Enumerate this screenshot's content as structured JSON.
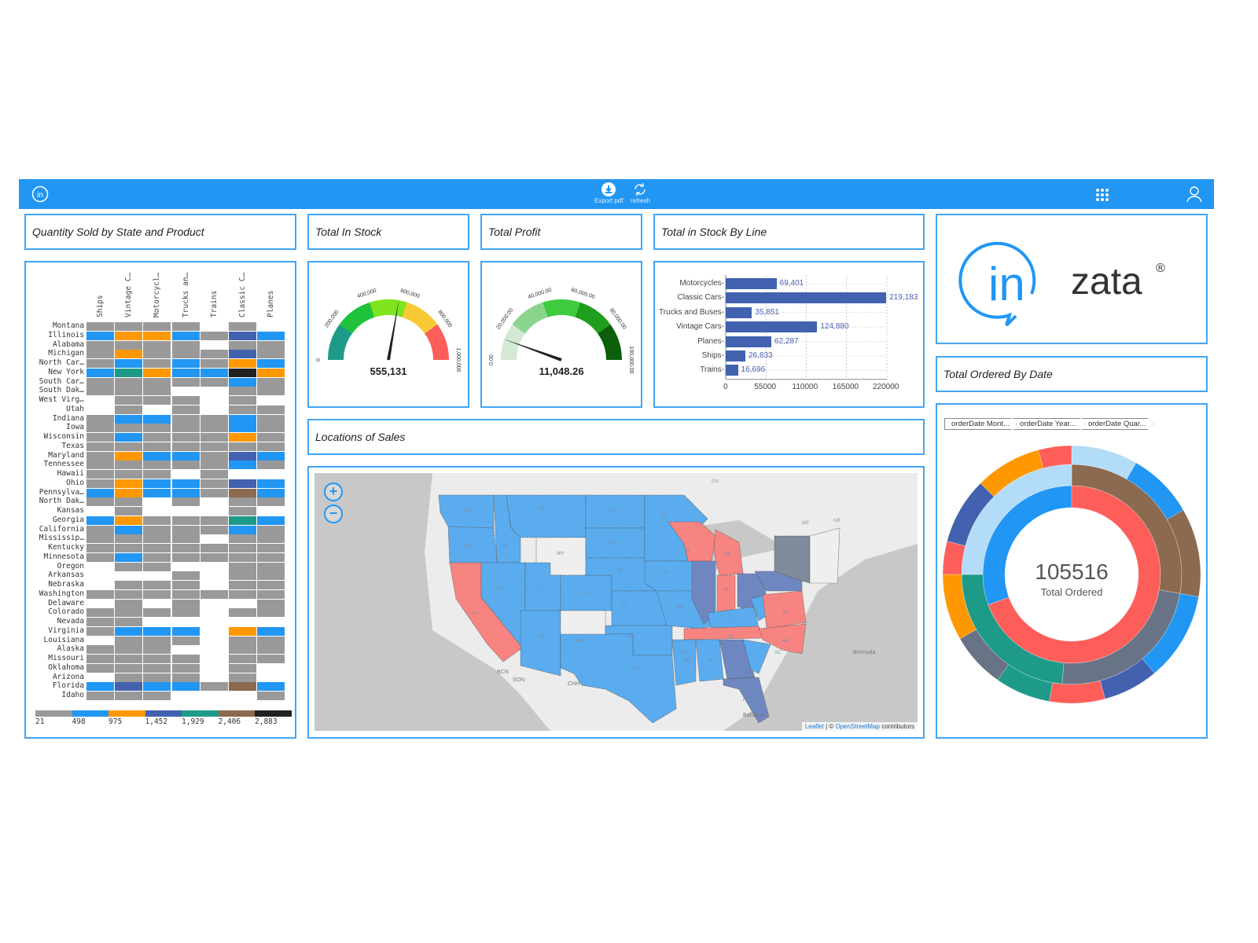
{
  "topbar": {
    "export_label": "Export pdf",
    "refresh_label": "refresh",
    "bg_color": "#2196f3"
  },
  "panels": {
    "heatmap_title": "Quantity Sold by State and Product",
    "stock_title": "Total In Stock",
    "profit_title": "Total Profit",
    "stock_by_line_title": "Total in Stock By Line",
    "locations_title": "Locations of Sales",
    "ordered_by_date_title": "Total Ordered By Date"
  },
  "logo": {
    "text_in": "in",
    "text_zata": "zata",
    "registered": "®"
  },
  "chart_data": [
    {
      "type": "heatmap",
      "title": "Quantity Sold by State and Product",
      "columns": [
        "Ships",
        "Vintage C…",
        "Motorcycl…",
        "Trucks an…",
        "Trains",
        "Classic C…",
        "Planes"
      ],
      "rows": [
        "Montana",
        "Illinois",
        "Alabama",
        "Michigan",
        "North Car…",
        "New York",
        "South Car…",
        "South Dak…",
        "West Virg…",
        "Utah",
        "Indiana",
        "Iowa",
        "Wisconsin",
        "Texas",
        "Maryland",
        "Tennessee",
        "Hawaii",
        "Ohio",
        "Pennsylva…",
        "North Dak…",
        "Kansas",
        "Georgia",
        "California",
        "Mississip…",
        "Kentucky",
        "Minnesota",
        "Oregon",
        "Arkansas",
        "Nebraska",
        "Washington",
        "Delaware",
        "Colorado",
        "Nevada",
        "Virginia",
        "Louisiana",
        "Alaska",
        "Missouri",
        "Oklahoma",
        "Arizona",
        "Florida",
        "Idaho"
      ],
      "cells": [
        [
          0,
          0,
          0,
          0,
          null,
          0,
          null
        ],
        [
          1,
          2,
          2,
          1,
          0,
          3,
          1
        ],
        [
          0,
          0,
          0,
          0,
          null,
          0,
          0
        ],
        [
          0,
          2,
          0,
          0,
          0,
          3,
          0
        ],
        [
          0,
          1,
          0,
          1,
          0,
          2,
          1
        ],
        [
          1,
          4,
          2,
          1,
          1,
          6,
          2
        ],
        [
          0,
          0,
          0,
          0,
          0,
          1,
          0
        ],
        [
          0,
          0,
          0,
          null,
          null,
          0,
          0
        ],
        [
          null,
          0,
          0,
          0,
          null,
          0,
          null
        ],
        [
          null,
          0,
          null,
          0,
          null,
          0,
          0
        ],
        [
          0,
          1,
          1,
          0,
          0,
          1,
          0
        ],
        [
          0,
          0,
          0,
          0,
          0,
          1,
          0
        ],
        [
          0,
          1,
          0,
          0,
          0,
          2,
          0
        ],
        [
          0,
          0,
          0,
          0,
          0,
          0,
          0
        ],
        [
          0,
          2,
          1,
          1,
          0,
          3,
          1
        ],
        [
          0,
          0,
          0,
          0,
          0,
          1,
          0
        ],
        [
          0,
          0,
          0,
          null,
          0,
          null,
          null
        ],
        [
          0,
          2,
          1,
          1,
          0,
          3,
          1
        ],
        [
          1,
          2,
          1,
          1,
          0,
          5,
          1
        ],
        [
          0,
          0,
          null,
          0,
          null,
          0,
          0
        ],
        [
          null,
          0,
          null,
          null,
          null,
          0,
          null
        ],
        [
          1,
          2,
          0,
          0,
          0,
          4,
          1
        ],
        [
          0,
          1,
          0,
          0,
          0,
          1,
          0
        ],
        [
          0,
          0,
          0,
          0,
          null,
          0,
          0
        ],
        [
          0,
          0,
          0,
          0,
          0,
          0,
          0
        ],
        [
          0,
          1,
          0,
          0,
          0,
          0,
          0
        ],
        [
          null,
          0,
          0,
          null,
          null,
          0,
          0
        ],
        [
          null,
          null,
          null,
          0,
          null,
          0,
          0
        ],
        [
          null,
          0,
          0,
          0,
          null,
          0,
          0
        ],
        [
          0,
          0,
          0,
          0,
          0,
          0,
          0
        ],
        [
          null,
          0,
          null,
          0,
          null,
          null,
          0
        ],
        [
          0,
          0,
          0,
          0,
          null,
          0,
          0
        ],
        [
          0,
          0,
          null,
          null,
          null,
          null,
          null
        ],
        [
          0,
          1,
          1,
          1,
          null,
          2,
          1
        ],
        [
          null,
          0,
          0,
          0,
          null,
          0,
          0
        ],
        [
          0,
          0,
          0,
          null,
          null,
          0,
          0
        ],
        [
          0,
          0,
          0,
          0,
          null,
          0,
          0
        ],
        [
          0,
          0,
          0,
          0,
          null,
          0,
          null
        ],
        [
          null,
          0,
          0,
          0,
          null,
          0,
          null
        ],
        [
          1,
          3,
          1,
          1,
          0,
          5,
          1
        ],
        [
          0,
          0,
          0,
          null,
          null,
          null,
          0
        ]
      ],
      "legend": {
        "colors": [
          "#999999",
          "#2196f3",
          "#ff9800",
          "#4262af",
          "#1e9a88",
          "#8b6a4f",
          "#222222"
        ],
        "labels": [
          "21",
          "498",
          "975",
          "1,452",
          "1,929",
          "2,406",
          "2,883"
        ]
      }
    },
    {
      "type": "gauge",
      "title": "Total In Stock",
      "value": 555131,
      "value_label": "555,131",
      "min": 0,
      "max": 1000000,
      "ticks": [
        "0",
        "200,000",
        "400,000",
        "600,000",
        "800,000",
        "1,000,000"
      ],
      "bands": [
        "#1e9a88",
        "#1fc23a",
        "#7ee41e",
        "#f7c934",
        "#fd5e5a"
      ]
    },
    {
      "type": "gauge",
      "title": "Total Profit",
      "value": 11048.26,
      "value_label": "11,048.26",
      "min": 0,
      "max": 100000,
      "ticks": [
        "0.00",
        "20,000.00",
        "40,000.00",
        "60,000.00",
        "80,000.00",
        "100,000.00"
      ],
      "bands": [
        "#d3e9d3",
        "#8ad48e",
        "#3ecc3e",
        "#1e9e1e",
        "#0b5f0b"
      ]
    },
    {
      "type": "bar",
      "orientation": "horizontal",
      "title": "Total in Stock By Line",
      "categories": [
        "Motorcycles",
        "Classic Cars",
        "Trucks and Buses",
        "Vintage Cars",
        "Planes",
        "Ships",
        "Trains"
      ],
      "values": [
        69401,
        219183,
        35851,
        124880,
        62287,
        26833,
        16696
      ],
      "value_labels": [
        "69,401",
        "219,183",
        "35,851",
        "124,880",
        "62,287",
        "26,833",
        "16,696"
      ],
      "xticks": [
        "0",
        "55000",
        "110000",
        "165000",
        "220000"
      ],
      "xlim": [
        0,
        220000
      ],
      "grid": true,
      "color": "#4262af"
    },
    {
      "type": "pie",
      "subtype": "sunburst",
      "title": "Total Ordered By Date",
      "center_value": "105516",
      "center_label": "Total Ordered",
      "breadcrumbs": [
        "orderDate Mont...",
        "orderDate Year...",
        "orderDate Quar..."
      ]
    }
  ],
  "map": {
    "zoom_in": "+",
    "zoom_out": "−",
    "attribution_leaflet": "Leaflet",
    "attribution_sep": " | © ",
    "attribution_osm": "OpenStreetMap",
    "attribution_suffix": " contributors",
    "state_colors": {
      "high": "#6f87c0",
      "mid": "#f88481",
      "low": "#5aacef",
      "none": "#efefef"
    }
  }
}
